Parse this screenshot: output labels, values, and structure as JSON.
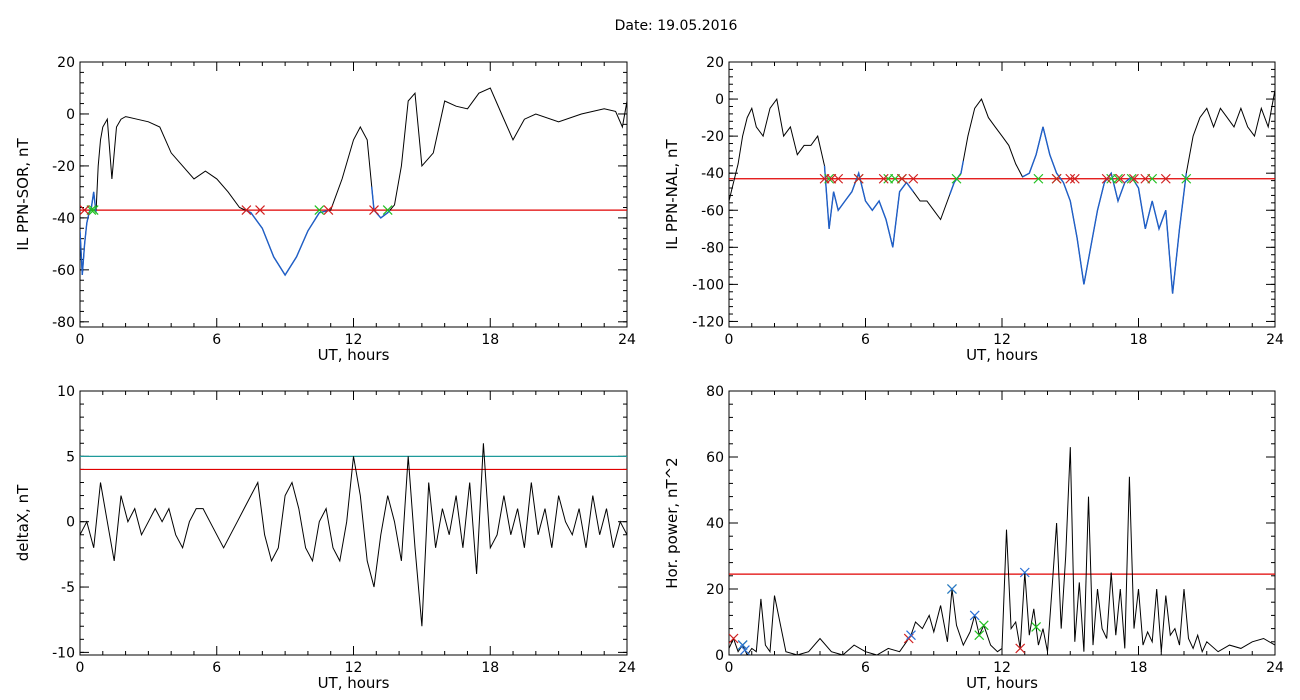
{
  "title": "Date:  19.05.2016",
  "colors": {
    "trace": "#000000",
    "threshold": "#e00000",
    "upper_threshold": "#1f9a9a",
    "highlight": "#1f5fc8",
    "marker_start": "#20c020",
    "marker_end": "#d02020",
    "marker_peak": "#2a6fd6"
  },
  "chart_data": [
    {
      "type": "line",
      "xlabel": "UT, hours",
      "ylabel": "IL PPN-SOR, nT",
      "xlim": [
        0,
        24
      ],
      "ylim": [
        -82,
        20
      ],
      "xticks": [
        0,
        6,
        12,
        18,
        24
      ],
      "yticks": [
        -80,
        -60,
        -40,
        -20,
        0,
        20
      ],
      "threshold": -37,
      "x": [
        0,
        0.1,
        0.2,
        0.3,
        0.4,
        0.5,
        0.6,
        0.7,
        0.8,
        0.9,
        1.0,
        1.2,
        1.4,
        1.6,
        1.8,
        2.0,
        2.5,
        3.0,
        3.5,
        4.0,
        4.5,
        5.0,
        5.5,
        6.0,
        6.5,
        7.0,
        7.5,
        8.0,
        8.5,
        9.0,
        9.5,
        10.0,
        10.5,
        11.0,
        11.5,
        12.0,
        12.3,
        12.6,
        12.9,
        13.2,
        13.5,
        13.8,
        14.1,
        14.4,
        14.7,
        15.0,
        15.5,
        16.0,
        16.5,
        17.0,
        17.5,
        18.0,
        18.5,
        19.0,
        19.5,
        20.0,
        21.0,
        22.0,
        23.0,
        23.5,
        23.8,
        24.0
      ],
      "y": [
        -45,
        -62,
        -50,
        -42,
        -38,
        -36,
        -30,
        -38,
        -20,
        -10,
        -5,
        -2,
        -25,
        -5,
        -2,
        -1,
        -2,
        -3,
        -5,
        -15,
        -20,
        -25,
        -22,
        -25,
        -30,
        -36,
        -38,
        -44,
        -55,
        -62,
        -55,
        -45,
        -38,
        -37,
        -25,
        -10,
        -5,
        -10,
        -37,
        -40,
        -38,
        -35,
        -20,
        5,
        8,
        -20,
        -15,
        5,
        3,
        2,
        8,
        10,
        0,
        -10,
        -2,
        0,
        -3,
        0,
        2,
        1,
        -5,
        5
      ],
      "series_highlight": [
        [
          0,
          0.7
        ],
        [
          7.3,
          10.9
        ],
        [
          12.8,
          13.6
        ]
      ],
      "markers_start": [
        0.5,
        0.6,
        10.5,
        13.5
      ],
      "markers_end": [
        0.2,
        7.3,
        7.9,
        10.9,
        12.9
      ]
    },
    {
      "type": "line",
      "xlabel": "UT, hours",
      "ylabel": "IL PPN-NAL, nT",
      "xlim": [
        0,
        24
      ],
      "ylim": [
        -123,
        20
      ],
      "xticks": [
        0,
        6,
        12,
        18,
        24
      ],
      "yticks": [
        -120,
        -100,
        -80,
        -60,
        -40,
        -20,
        0,
        20
      ],
      "threshold": -43,
      "x": [
        0,
        0.2,
        0.4,
        0.6,
        0.8,
        1.0,
        1.2,
        1.5,
        1.8,
        2.1,
        2.4,
        2.7,
        3.0,
        3.3,
        3.6,
        3.9,
        4.2,
        4.4,
        4.6,
        4.8,
        5.1,
        5.4,
        5.7,
        6.0,
        6.3,
        6.6,
        6.9,
        7.2,
        7.5,
        7.8,
        8.1,
        8.4,
        8.7,
        9.0,
        9.3,
        9.6,
        9.9,
        10.2,
        10.5,
        10.8,
        11.1,
        11.4,
        11.7,
        12.0,
        12.3,
        12.6,
        12.9,
        13.2,
        13.5,
        13.8,
        14.1,
        14.4,
        14.7,
        15.0,
        15.3,
        15.6,
        15.9,
        16.2,
        16.5,
        16.8,
        17.1,
        17.4,
        17.7,
        18.0,
        18.3,
        18.6,
        18.9,
        19.2,
        19.5,
        19.8,
        20.1,
        20.4,
        20.7,
        21.0,
        21.3,
        21.6,
        21.9,
        22.2,
        22.5,
        22.8,
        23.1,
        23.4,
        23.7,
        24.0
      ],
      "y": [
        -55,
        -45,
        -35,
        -20,
        -10,
        -5,
        -15,
        -20,
        -5,
        0,
        -20,
        -15,
        -30,
        -25,
        -25,
        -20,
        -36,
        -70,
        -50,
        -60,
        -55,
        -50,
        -40,
        -55,
        -60,
        -55,
        -65,
        -80,
        -50,
        -45,
        -50,
        -55,
        -55,
        -60,
        -65,
        -55,
        -45,
        -40,
        -20,
        -5,
        0,
        -10,
        -15,
        -20,
        -25,
        -35,
        -42,
        -40,
        -30,
        -15,
        -30,
        -40,
        -45,
        -55,
        -75,
        -100,
        -80,
        -60,
        -45,
        -40,
        -55,
        -45,
        -42,
        -48,
        -70,
        -55,
        -70,
        -60,
        -105,
        -70,
        -40,
        -20,
        -10,
        -5,
        -15,
        -5,
        -10,
        -15,
        -5,
        -15,
        -20,
        -5,
        -15,
        5
      ],
      "series_highlight": [
        [
          4.2,
          8.1
        ],
        [
          9.7,
          10.3
        ],
        [
          12.9,
          20.1
        ]
      ],
      "markers_start": [
        4.4,
        5.7,
        7.0,
        7.3,
        7.6,
        10.0,
        13.6,
        14.4,
        16.8,
        17.1,
        17.7,
        18.6,
        20.1
      ],
      "markers_end": [
        4.2,
        4.5,
        4.8,
        5.7,
        6.8,
        7.6,
        8.1,
        14.4,
        15.0,
        15.2,
        16.6,
        17.2,
        17.8,
        18.3,
        19.2
      ]
    },
    {
      "type": "line",
      "xlabel": "UT, hours",
      "ylabel": "deltaX, nT",
      "xlim": [
        0,
        24
      ],
      "ylim": [
        -10.2,
        10
      ],
      "xticks": [
        0,
        6,
        12,
        18,
        24
      ],
      "yticks": [
        -10,
        -5,
        0,
        5,
        10
      ],
      "threshold": 4,
      "upper_threshold": 5,
      "x": [
        0,
        0.3,
        0.6,
        0.9,
        1.2,
        1.5,
        1.8,
        2.1,
        2.4,
        2.7,
        3.0,
        3.3,
        3.6,
        3.9,
        4.2,
        4.5,
        4.8,
        5.1,
        5.4,
        5.7,
        6.0,
        6.3,
        6.6,
        6.9,
        7.2,
        7.5,
        7.8,
        8.1,
        8.4,
        8.7,
        9.0,
        9.3,
        9.6,
        9.9,
        10.2,
        10.5,
        10.8,
        11.1,
        11.4,
        11.7,
        12.0,
        12.3,
        12.6,
        12.9,
        13.2,
        13.5,
        13.8,
        14.1,
        14.4,
        14.7,
        15.0,
        15.3,
        15.6,
        15.9,
        16.2,
        16.5,
        16.8,
        17.1,
        17.4,
        17.7,
        18.0,
        18.3,
        18.6,
        18.9,
        19.2,
        19.5,
        19.8,
        20.1,
        20.4,
        20.7,
        21.0,
        21.3,
        21.6,
        21.9,
        22.2,
        22.5,
        22.8,
        23.1,
        23.4,
        23.7,
        24.0
      ],
      "y": [
        -1,
        0,
        -2,
        3,
        0,
        -3,
        2,
        0,
        1,
        -1,
        0,
        1,
        0,
        1,
        -1,
        -2,
        0,
        1,
        1,
        0,
        -1,
        -2,
        -1,
        0,
        1,
        2,
        3,
        -1,
        -3,
        -2,
        2,
        3,
        1,
        -2,
        -3,
        0,
        1,
        -2,
        -3,
        0,
        5,
        2,
        -3,
        -5,
        -1,
        2,
        0,
        -3,
        5,
        -2,
        -8,
        3,
        -2,
        1,
        -1,
        2,
        -2,
        3,
        -4,
        6,
        -2,
        -1,
        2,
        -1,
        1,
        -2,
        3,
        -1,
        1,
        -2,
        2,
        0,
        -1,
        1,
        -2,
        2,
        -1,
        1,
        -2,
        0,
        -1
      ]
    },
    {
      "type": "line",
      "xlabel": "UT, hours",
      "ylabel": "Hor. power, nT^2",
      "xlim": [
        0,
        24
      ],
      "ylim": [
        0,
        80
      ],
      "xticks": [
        0,
        6,
        12,
        18,
        24
      ],
      "yticks": [
        0,
        20,
        40,
        60,
        80
      ],
      "threshold": 24.5,
      "x": [
        0,
        0.2,
        0.4,
        0.6,
        0.8,
        1.0,
        1.2,
        1.4,
        1.6,
        1.8,
        2.0,
        2.5,
        3.0,
        3.5,
        4.0,
        4.5,
        5.0,
        5.5,
        6.0,
        6.5,
        7.0,
        7.5,
        7.8,
        8.0,
        8.2,
        8.5,
        8.8,
        9.0,
        9.3,
        9.6,
        9.8,
        10.0,
        10.3,
        10.6,
        10.8,
        11.0,
        11.2,
        11.5,
        11.8,
        12.0,
        12.2,
        12.4,
        12.6,
        12.8,
        13.0,
        13.2,
        13.4,
        13.6,
        13.8,
        14.0,
        14.2,
        14.4,
        14.6,
        14.8,
        15.0,
        15.2,
        15.4,
        15.6,
        15.8,
        16.0,
        16.2,
        16.4,
        16.6,
        16.8,
        17.0,
        17.2,
        17.4,
        17.6,
        17.8,
        18.0,
        18.2,
        18.4,
        18.6,
        18.8,
        19.0,
        19.2,
        19.4,
        19.6,
        19.8,
        20.0,
        20.2,
        20.4,
        20.6,
        20.8,
        21.0,
        21.5,
        22.0,
        22.5,
        23.0,
        23.5,
        24.0
      ],
      "y": [
        2,
        5,
        1,
        3,
        0,
        2,
        1,
        17,
        3,
        1,
        18,
        1,
        0,
        1,
        5,
        1,
        0,
        3,
        1,
        0,
        2,
        1,
        4,
        6,
        10,
        8,
        12,
        7,
        15,
        4,
        20,
        9,
        3,
        7,
        12,
        6,
        9,
        3,
        1,
        2,
        38,
        8,
        10,
        2,
        25,
        6,
        14,
        3,
        8,
        1,
        20,
        40,
        8,
        30,
        63,
        4,
        22,
        1,
        48,
        3,
        20,
        8,
        5,
        25,
        6,
        20,
        2,
        54,
        8,
        20,
        3,
        7,
        4,
        20,
        1,
        18,
        6,
        8,
        3,
        20,
        5,
        2,
        6,
        1,
        4,
        1,
        3,
        2,
        4,
        5,
        3
      ],
      "markers_start": [
        0.6,
        9.8,
        11.0,
        11.2,
        13.5
      ],
      "markers_end": [
        0.2,
        7.9,
        12.8
      ],
      "markers_peak": [
        0.6,
        0.7,
        8.0,
        9.8,
        10.8,
        13.0
      ]
    }
  ]
}
